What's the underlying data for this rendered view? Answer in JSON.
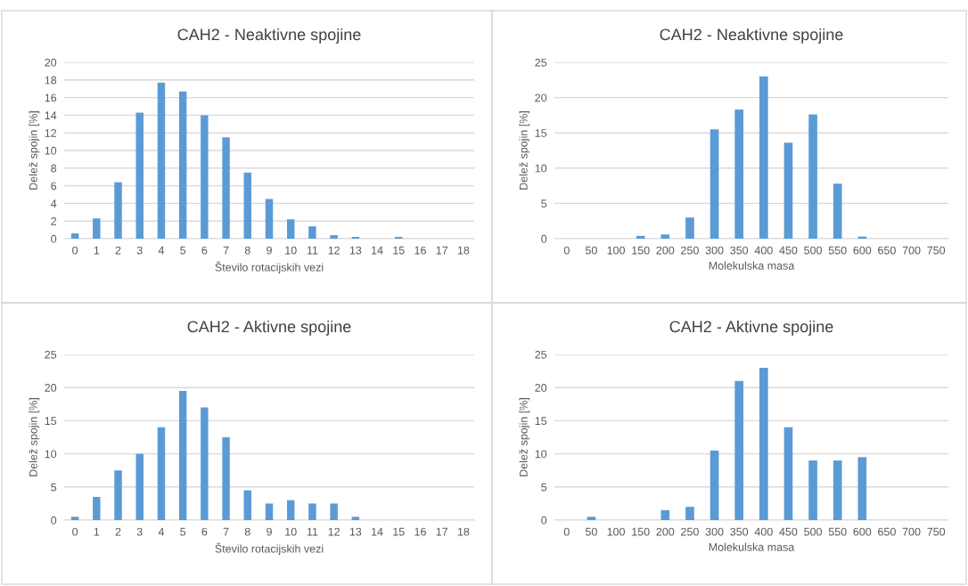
{
  "chart_data": [
    {
      "type": "bar",
      "title": "CAH2 - Neaktivne spojine",
      "xlabel": "Število rotacijskih vezi",
      "ylabel": "Delež spojin [%]",
      "color": "#5b9bd5",
      "grid": "y",
      "categories": [
        "0",
        "1",
        "2",
        "3",
        "4",
        "5",
        "6",
        "7",
        "8",
        "9",
        "10",
        "11",
        "12",
        "13",
        "14",
        "15",
        "16",
        "17",
        "18"
      ],
      "values": [
        0.6,
        2.3,
        6.4,
        14.3,
        17.7,
        16.7,
        14.0,
        11.5,
        7.5,
        4.5,
        2.2,
        1.4,
        0.4,
        0.2,
        0,
        0.2,
        0,
        0,
        0
      ],
      "ylim": [
        0,
        20
      ],
      "yticks": [
        0,
        2,
        4,
        6,
        8,
        10,
        12,
        14,
        16,
        18,
        20
      ]
    },
    {
      "type": "bar",
      "title": "CAH2 - Neaktivne spojine",
      "xlabel": "Molekulska masa",
      "ylabel": "Delež spojin [%]",
      "color": "#5b9bd5",
      "grid": "y",
      "categories": [
        "0",
        "50",
        "100",
        "150",
        "200",
        "250",
        "300",
        "350",
        "400",
        "450",
        "500",
        "550",
        "600",
        "650",
        "700",
        "750"
      ],
      "values": [
        0,
        0,
        0,
        0.4,
        0.6,
        3.0,
        15.5,
        18.3,
        23.0,
        13.6,
        17.6,
        7.8,
        0.3,
        0,
        0,
        0
      ],
      "ylim": [
        0,
        25
      ],
      "yticks": [
        0,
        5,
        10,
        15,
        20,
        25
      ]
    },
    {
      "type": "bar",
      "title": "CAH2 - Aktivne spojine",
      "xlabel": "Število rotacijskih vezi",
      "ylabel": "Delež spojin [%]",
      "color": "#5b9bd5",
      "grid": "y",
      "categories": [
        "0",
        "1",
        "2",
        "3",
        "4",
        "5",
        "6",
        "7",
        "8",
        "9",
        "10",
        "11",
        "12",
        "13",
        "14",
        "15",
        "16",
        "17",
        "18"
      ],
      "values": [
        0.5,
        3.5,
        7.5,
        10,
        14,
        19.5,
        17,
        12.5,
        4.5,
        2.5,
        3,
        2.5,
        2.5,
        0.5,
        0,
        0,
        0,
        0,
        0
      ],
      "ylim": [
        0,
        25
      ],
      "yticks": [
        0,
        5,
        10,
        15,
        20,
        25
      ]
    },
    {
      "type": "bar",
      "title": "CAH2 - Aktivne spojine",
      "xlabel": "Molekulska masa",
      "ylabel": "Delež spojin [%]",
      "color": "#5b9bd5",
      "grid": "y",
      "categories": [
        "0",
        "50",
        "100",
        "150",
        "200",
        "250",
        "300",
        "350",
        "400",
        "450",
        "500",
        "550",
        "600",
        "650",
        "700",
        "750"
      ],
      "values": [
        0,
        0.5,
        0,
        0,
        1.5,
        2,
        10.5,
        21,
        23,
        14,
        9,
        9,
        9.5,
        0,
        0,
        0
      ],
      "ylim": [
        0,
        25
      ],
      "yticks": [
        0,
        5,
        10,
        15,
        20,
        25
      ]
    }
  ]
}
